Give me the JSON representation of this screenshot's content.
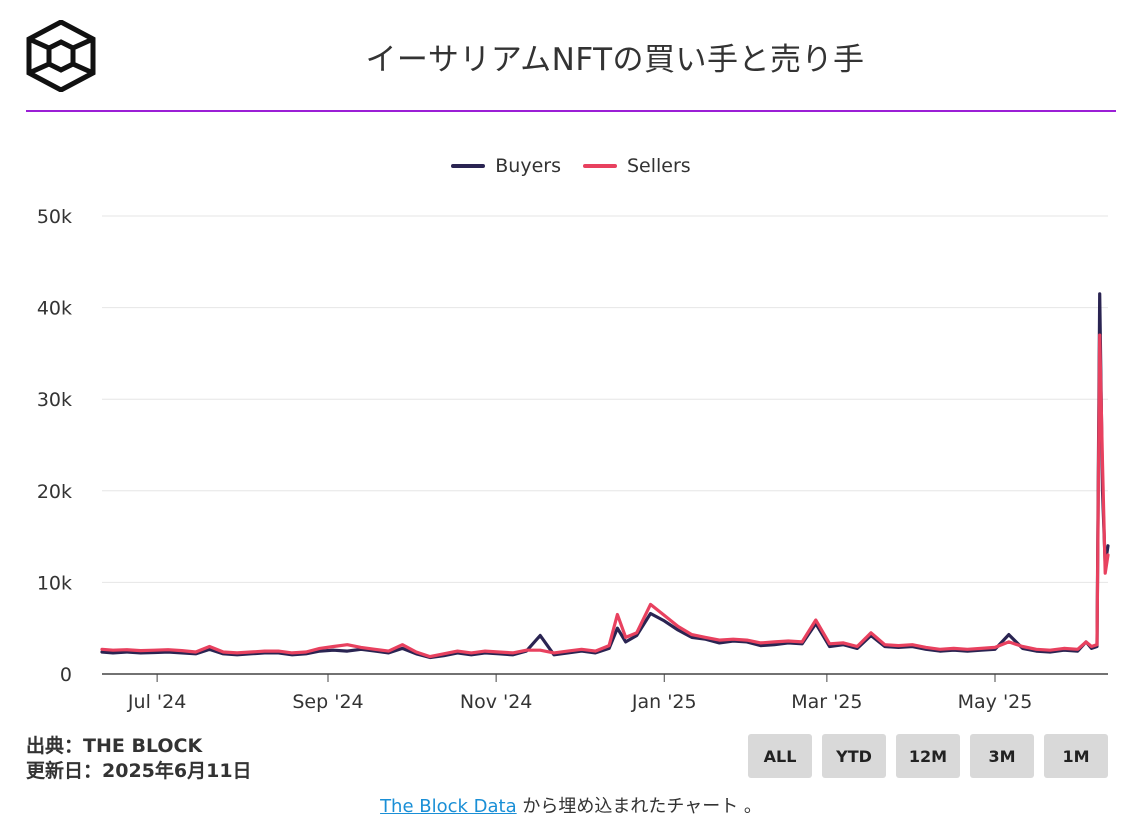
{
  "header": {
    "title": "イーサリアムNFTの買い手と売り手",
    "logo_icon": "the-block-cube-logo-icon"
  },
  "colors": {
    "accent_rule": "#9b1fd6",
    "buyers": "#2a2452",
    "sellers": "#e8415f",
    "grid": "#e6e6e6",
    "button_bg": "#d9d9d9"
  },
  "footer": {
    "source_line": "出典：THE BLOCK",
    "updated_line": "更新日：2025年6月11日",
    "link_text": "The Block Data",
    "link_suffix": " から埋め込まれたチャート 。"
  },
  "range_buttons": [
    "ALL",
    "YTD",
    "12M",
    "3M",
    "1M"
  ],
  "chart_data": {
    "type": "line",
    "title": "イーサリアムNFTの買い手と売り手",
    "xlabel": "",
    "ylabel": "",
    "legend_position": "top-center",
    "grid": true,
    "ylim": [
      0,
      50000
    ],
    "y_ticks": [
      "0",
      "10k",
      "20k",
      "30k",
      "40k",
      "50k"
    ],
    "x_ticks": [
      {
        "label": "Jul '24",
        "date": "2024-07-01"
      },
      {
        "label": "Sep '24",
        "date": "2024-09-01"
      },
      {
        "label": "Nov '24",
        "date": "2024-11-01"
      },
      {
        "label": "Jan '25",
        "date": "2025-01-01"
      },
      {
        "label": "Mar '25",
        "date": "2025-03-01"
      },
      {
        "label": "May '25",
        "date": "2025-05-01"
      }
    ],
    "x": [
      "2024-06-11",
      "2024-06-15",
      "2024-06-20",
      "2024-06-25",
      "2024-06-30",
      "2024-07-05",
      "2024-07-10",
      "2024-07-15",
      "2024-07-20",
      "2024-07-25",
      "2024-07-30",
      "2024-08-04",
      "2024-08-09",
      "2024-08-14",
      "2024-08-19",
      "2024-08-24",
      "2024-08-29",
      "2024-09-03",
      "2024-09-08",
      "2024-09-13",
      "2024-09-18",
      "2024-09-23",
      "2024-09-28",
      "2024-10-03",
      "2024-10-08",
      "2024-10-13",
      "2024-10-18",
      "2024-10-23",
      "2024-10-28",
      "2024-11-02",
      "2024-11-07",
      "2024-11-12",
      "2024-11-17",
      "2024-11-22",
      "2024-11-27",
      "2024-12-02",
      "2024-12-07",
      "2024-12-12",
      "2024-12-15",
      "2024-12-18",
      "2024-12-22",
      "2024-12-27",
      "2025-01-01",
      "2025-01-06",
      "2025-01-11",
      "2025-01-16",
      "2025-01-21",
      "2025-01-26",
      "2025-01-31",
      "2025-02-05",
      "2025-02-10",
      "2025-02-15",
      "2025-02-20",
      "2025-02-25",
      "2025-03-02",
      "2025-03-07",
      "2025-03-12",
      "2025-03-17",
      "2025-03-22",
      "2025-03-27",
      "2025-04-01",
      "2025-04-06",
      "2025-04-11",
      "2025-04-16",
      "2025-04-21",
      "2025-04-26",
      "2025-05-01",
      "2025-05-06",
      "2025-05-11",
      "2025-05-16",
      "2025-05-21",
      "2025-05-26",
      "2025-05-31",
      "2025-06-03",
      "2025-06-05",
      "2025-06-07",
      "2025-06-08",
      "2025-06-09",
      "2025-06-10",
      "2025-06-11"
    ],
    "series": [
      {
        "name": "Buyers",
        "color": "#2a2452",
        "values": [
          2400,
          2300,
          2400,
          2300,
          2350,
          2400,
          2300,
          2200,
          2700,
          2200,
          2100,
          2200,
          2300,
          2300,
          2100,
          2200,
          2500,
          2600,
          2500,
          2700,
          2500,
          2300,
          2800,
          2200,
          1800,
          2000,
          2300,
          2100,
          2300,
          2200,
          2100,
          2500,
          4200,
          2100,
          2300,
          2500,
          2300,
          2800,
          5000,
          3500,
          4200,
          6600,
          5800,
          4800,
          4000,
          3800,
          3400,
          3600,
          3500,
          3100,
          3200,
          3400,
          3300,
          5500,
          3000,
          3200,
          2800,
          4200,
          3000,
          2900,
          3000,
          2700,
          2500,
          2600,
          2500,
          2600,
          2700,
          4300,
          2800,
          2500,
          2400,
          2600,
          2500,
          3500,
          2800,
          3000,
          41500,
          20000,
          12000,
          14000
        ]
      },
      {
        "name": "Sellers",
        "color": "#e8415f",
        "values": [
          2700,
          2600,
          2650,
          2550,
          2600,
          2650,
          2550,
          2400,
          3000,
          2400,
          2300,
          2400,
          2500,
          2500,
          2300,
          2400,
          2800,
          3000,
          3200,
          2900,
          2700,
          2500,
          3200,
          2400,
          1900,
          2200,
          2500,
          2300,
          2500,
          2400,
          2300,
          2600,
          2600,
          2300,
          2500,
          2700,
          2500,
          3100,
          6500,
          4000,
          4500,
          7600,
          6400,
          5200,
          4300,
          4000,
          3700,
          3800,
          3700,
          3400,
          3500,
          3600,
          3500,
          5900,
          3300,
          3400,
          3000,
          4500,
          3200,
          3100,
          3200,
          2900,
          2700,
          2800,
          2700,
          2800,
          2900,
          3500,
          3000,
          2700,
          2600,
          2800,
          2700,
          3500,
          3000,
          3200,
          37000,
          23000,
          11000,
          13000
        ]
      }
    ]
  }
}
